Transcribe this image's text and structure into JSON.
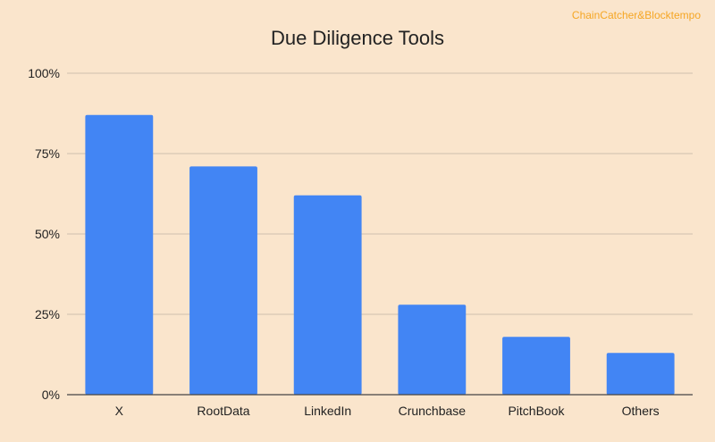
{
  "watermark": "ChainCatcher&Blocktempo",
  "colors": {
    "background": "#fae5cc",
    "bar": "#4285f4",
    "grid": "#cdbfae",
    "axis": "#444444",
    "text": "#222222",
    "watermark": "#f5a623"
  },
  "chart_data": {
    "type": "bar",
    "title": "Due Diligence Tools",
    "categories": [
      "X",
      "RootData",
      "LinkedIn",
      "Crunchbase",
      "PitchBook",
      "Others"
    ],
    "values": [
      87,
      71,
      62,
      28,
      18,
      13
    ],
    "ylim": [
      0,
      100
    ],
    "yticks": [
      0,
      25,
      50,
      75,
      100
    ],
    "ytick_labels": [
      "0%",
      "25%",
      "50%",
      "75%",
      "100%"
    ],
    "xlabel": "",
    "ylabel": "",
    "grid": true,
    "legend": "none"
  }
}
